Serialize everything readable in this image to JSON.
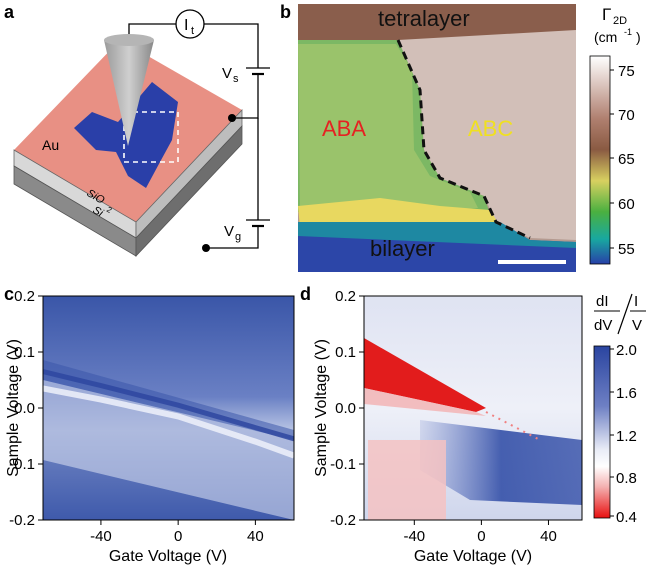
{
  "panel_labels": {
    "a": "a",
    "b": "b",
    "c": "c",
    "d": "d"
  },
  "panel_a": {
    "current_label": "I",
    "current_sub": "t",
    "vs_label": "V",
    "vs_sub": "s",
    "vg_label": "V",
    "vg_sub": "g",
    "au_label": "Au",
    "sio2_label": "SiO",
    "sio2_sub": "2",
    "si_label": "Si"
  },
  "panel_b": {
    "label_tetralayer": "tetralayer",
    "label_bilayer": "bilayer",
    "label_aba": "ABA",
    "label_abc": "ABC",
    "colorbar_title_sym": "Γ",
    "colorbar_title_sub": "2D",
    "colorbar_unit": "(cm",
    "colorbar_unit_sup": "-1",
    "colorbar_unit_end": ")",
    "colorbar_ticks": [
      "75",
      "70",
      "65",
      "60",
      "55"
    ],
    "colors": {
      "aba": "#e52222",
      "abc": "#f0e020"
    }
  },
  "chart_data": [
    {
      "type": "heatmap",
      "panel": "c",
      "xlabel": "Gate Voltage (V)",
      "ylabel": "Sample Voltage (V)",
      "xlim": [
        -70,
        60
      ],
      "ylim": [
        -0.2,
        0.2
      ],
      "xticks": [
        "-40",
        "0",
        "40"
      ],
      "yticks": [
        "0.2",
        "0.1",
        "0.0",
        "-0.1",
        "-0.2"
      ],
      "features": [
        {
          "name": "",
          "x": [
            -70,
            -40,
            0,
            40,
            60
          ],
          "y": [
            0.065,
            0.04,
            0.005,
            -0.035,
            -0.055
          ]
        },
        {
          "name": "",
          "x": [
            -70,
            -40,
            0,
            40,
            60
          ],
          "y": [
            0.035,
            0.015,
            -0.015,
            -0.06,
            -0.085
          ]
        }
      ]
    },
    {
      "type": "heatmap",
      "panel": "d",
      "xlabel": "Gate Voltage (V)",
      "ylabel": "Sample Voltage (V)",
      "xlim": [
        -70,
        60
      ],
      "ylim": [
        -0.2,
        0.2
      ],
      "xticks": [
        "-40",
        "0",
        "40"
      ],
      "yticks": [
        "0.2",
        "0.1",
        "0.0",
        "-0.1",
        "-0.2"
      ],
      "colorbar_title_num1": "dI",
      "colorbar_title_den1": "dV",
      "colorbar_title_num2": "I",
      "colorbar_title_den2": "V",
      "colorbar_ticks": [
        "2.0",
        "1.6",
        "1.2",
        "0.8",
        "0.4"
      ],
      "colorbar_range": [
        0.4,
        2.0
      ]
    }
  ]
}
